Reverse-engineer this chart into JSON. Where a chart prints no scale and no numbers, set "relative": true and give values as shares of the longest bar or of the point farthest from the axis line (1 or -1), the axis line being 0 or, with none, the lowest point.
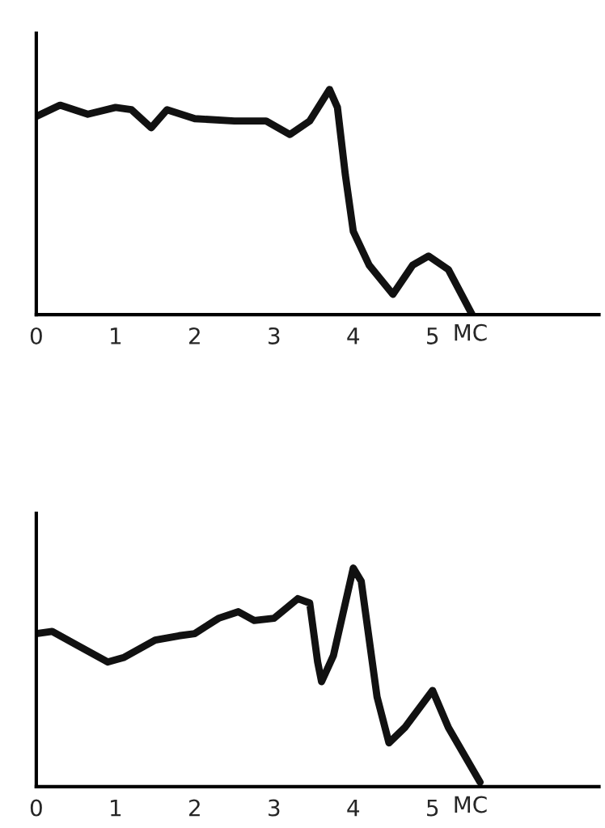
{
  "chart_data": [
    {
      "type": "line",
      "relative": true,
      "xlabel": "MC",
      "xlim": [
        0,
        7.1
      ],
      "xticks": [
        0,
        1,
        2,
        3,
        4,
        5
      ],
      "tick_labels": "x",
      "grid": false,
      "legend": false,
      "marker": "none",
      "line_style": "solid",
      "series": [
        {
          "color": "#111111",
          "x": [
            0,
            0.3,
            0.65,
            1.0,
            1.2,
            1.45,
            1.65,
            2.0,
            2.5,
            2.9,
            3.2,
            3.45,
            3.7,
            3.8,
            3.9,
            4.0,
            4.2,
            4.5,
            4.75,
            4.95,
            5.2,
            5.5
          ],
          "values": [
            0.88,
            0.93,
            0.89,
            0.92,
            0.91,
            0.83,
            0.91,
            0.87,
            0.86,
            0.86,
            0.8,
            0.86,
            1.0,
            0.92,
            0.62,
            0.37,
            0.22,
            0.09,
            0.22,
            0.26,
            0.2,
            0
          ]
        }
      ]
    },
    {
      "type": "line",
      "relative": true,
      "xlabel": "MC",
      "xlim": [
        0,
        7.1
      ],
      "xticks": [
        0,
        1,
        2,
        3,
        4,
        5
      ],
      "tick_labels": "x",
      "grid": false,
      "legend": false,
      "marker": "none",
      "line_style": "solid",
      "series": [
        {
          "color": "#111111",
          "x": [
            0,
            0.2,
            0.5,
            0.9,
            1.1,
            1.5,
            1.8,
            2.0,
            2.3,
            2.55,
            2.75,
            3.0,
            3.3,
            3.45,
            3.55,
            3.6,
            3.75,
            4.0,
            4.1,
            4.3,
            4.45,
            4.65,
            5.0,
            5.2,
            5.6
          ],
          "values": [
            0.7,
            0.71,
            0.65,
            0.57,
            0.59,
            0.67,
            0.69,
            0.7,
            0.77,
            0.8,
            0.76,
            0.77,
            0.86,
            0.84,
            0.57,
            0.48,
            0.6,
            1.0,
            0.94,
            0.41,
            0.2,
            0.27,
            0.44,
            0.27,
            0.02
          ]
        }
      ]
    }
  ]
}
